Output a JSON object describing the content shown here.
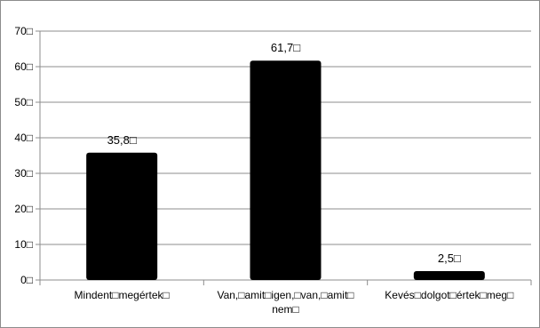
{
  "chart_data": {
    "type": "bar",
    "categories": [
      [
        "Mindent□megértek□"
      ],
      [
        "Van,□amit□igen,□van,□amit□",
        "nem□"
      ],
      [
        "Kevés□dolgot□értek□meg□"
      ]
    ],
    "values": [
      35.8,
      61.7,
      2.5
    ],
    "data_labels": [
      "35,8□",
      "61,7□",
      "2,5□"
    ],
    "y_ticks": [
      {
        "value": 0,
        "label": "0□"
      },
      {
        "value": 10,
        "label": "10□"
      },
      {
        "value": 20,
        "label": "20□"
      },
      {
        "value": 30,
        "label": "30□"
      },
      {
        "value": 40,
        "label": "40□"
      },
      {
        "value": 50,
        "label": "50□"
      },
      {
        "value": 60,
        "label": "60□"
      },
      {
        "value": 70,
        "label": "70□"
      }
    ],
    "ylim": [
      0,
      70
    ],
    "grid": true,
    "bar_color": "#000000",
    "grid_color": "#8c8c8c",
    "title": "",
    "xlabel": "",
    "ylabel": ""
  }
}
